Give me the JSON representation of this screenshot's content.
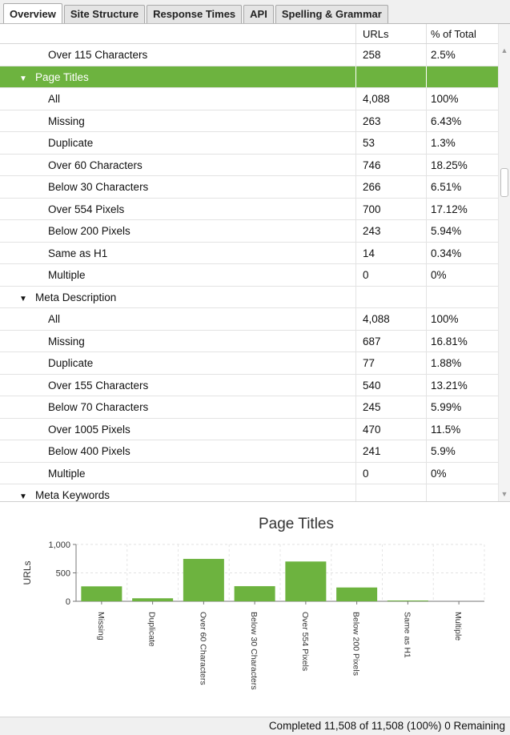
{
  "tabs": [
    "Overview",
    "Site Structure",
    "Response Times",
    "API",
    "Spelling & Grammar"
  ],
  "table": {
    "headers": {
      "urls": "URLs",
      "pct": "% of Total"
    },
    "rows": [
      {
        "type": "child",
        "label": "Over 115 Characters",
        "urls": "258",
        "pct": "2.5%"
      },
      {
        "type": "group",
        "label": "Page Titles",
        "urls": "",
        "pct": "",
        "selected": true
      },
      {
        "type": "child",
        "label": "All",
        "urls": "4,088",
        "pct": "100%"
      },
      {
        "type": "child",
        "label": "Missing",
        "urls": "263",
        "pct": "6.43%"
      },
      {
        "type": "child",
        "label": "Duplicate",
        "urls": "53",
        "pct": "1.3%"
      },
      {
        "type": "child",
        "label": "Over 60 Characters",
        "urls": "746",
        "pct": "18.25%"
      },
      {
        "type": "child",
        "label": "Below 30 Characters",
        "urls": "266",
        "pct": "6.51%"
      },
      {
        "type": "child",
        "label": "Over 554 Pixels",
        "urls": "700",
        "pct": "17.12%"
      },
      {
        "type": "child",
        "label": "Below 200 Pixels",
        "urls": "243",
        "pct": "5.94%"
      },
      {
        "type": "child",
        "label": "Same as H1",
        "urls": "14",
        "pct": "0.34%"
      },
      {
        "type": "child",
        "label": "Multiple",
        "urls": "0",
        "pct": "0%"
      },
      {
        "type": "group",
        "label": "Meta Description",
        "urls": "",
        "pct": ""
      },
      {
        "type": "child",
        "label": "All",
        "urls": "4,088",
        "pct": "100%"
      },
      {
        "type": "child",
        "label": "Missing",
        "urls": "687",
        "pct": "16.81%"
      },
      {
        "type": "child",
        "label": "Duplicate",
        "urls": "77",
        "pct": "1.88%"
      },
      {
        "type": "child",
        "label": "Over 155 Characters",
        "urls": "540",
        "pct": "13.21%"
      },
      {
        "type": "child",
        "label": "Below 70 Characters",
        "urls": "245",
        "pct": "5.99%"
      },
      {
        "type": "child",
        "label": "Over 1005 Pixels",
        "urls": "470",
        "pct": "11.5%"
      },
      {
        "type": "child",
        "label": "Below 400 Pixels",
        "urls": "241",
        "pct": "5.9%"
      },
      {
        "type": "child",
        "label": "Multiple",
        "urls": "0",
        "pct": "0%"
      },
      {
        "type": "group",
        "label": "Meta Keywords",
        "urls": "",
        "pct": ""
      }
    ]
  },
  "chart_data": {
    "type": "bar",
    "title": "Page Titles",
    "ylabel": "URLs",
    "categories": [
      "Missing",
      "Duplicate",
      "Over 60 Characters",
      "Below 30 Characters",
      "Over 554 Pixels",
      "Below 200 Pixels",
      "Same as H1",
      "Multiple"
    ],
    "values": [
      263,
      53,
      746,
      266,
      700,
      243,
      14,
      0
    ],
    "yticks": [
      "1,000",
      "500",
      "0"
    ],
    "ylim": [
      0,
      1000
    ],
    "grid": true,
    "bar_color": "#6db33f"
  },
  "status": "Completed 11,508 of 11,508 (100%) 0 Remaining",
  "colors": {
    "selected_row": "#6db33f",
    "bar": "#6db33f"
  }
}
